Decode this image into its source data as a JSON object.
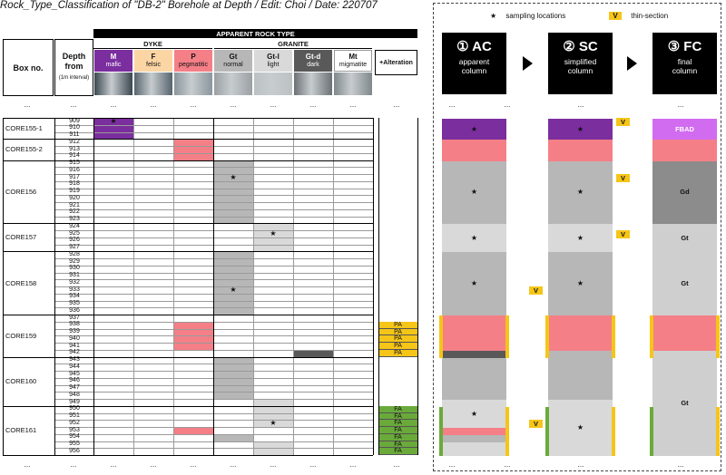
{
  "title": "Rock_Type_Classification of \"DB-2\" Borehole at Depth / Edit: Choi / Date: 220707",
  "header": {
    "box_no": "Box no.",
    "depth_from": "Depth from",
    "depth_interval": "(1m interval)",
    "apparent_rock_type": "APPARENT ROCK TYPE",
    "dyke": "DYKE",
    "granite": "GRANITE",
    "alteration": "+Alteration",
    "rock_types": [
      {
        "code": "M",
        "desc": "mafic",
        "color": "#7b2e9e",
        "text_color": "#ffffff",
        "photo": "#3a4650"
      },
      {
        "code": "F",
        "desc": "felsic",
        "color": "#fcd5a4",
        "text_color": "#111111",
        "photo": "#56646c"
      },
      {
        "code": "P",
        "desc": "pegmatitic",
        "color": "#f57f87",
        "text_color": "#111111",
        "photo": "#8a969c"
      },
      {
        "code": "Gt",
        "desc": "normal",
        "color": "#b7b7b7",
        "text_color": "#111111",
        "photo": "#9aa0a4"
      },
      {
        "code": "Gt-l",
        "desc": "light",
        "color": "#d9d9d9",
        "text_color": "#111111",
        "photo": "#bcc1c3"
      },
      {
        "code": "Gt-d",
        "desc": "dark",
        "color": "#595959",
        "text_color": "#ffffff",
        "photo": "#6b7176"
      },
      {
        "code": "Mt",
        "desc": "migmatite",
        "color": "#ffffff",
        "text_color": "#111111",
        "photo": "#80888c"
      }
    ]
  },
  "ellipsis": "...",
  "boxes": [
    {
      "name": "CORE155-1",
      "start": 909,
      "end": 911
    },
    {
      "name": "CORE155-2",
      "start": 912,
      "end": 914
    },
    {
      "name": "CORE156",
      "start": 915,
      "end": 923
    },
    {
      "name": "CORE157",
      "start": 924,
      "end": 927
    },
    {
      "name": "CORE158",
      "start": 928,
      "end": 936
    },
    {
      "name": "CORE159",
      "start": 937,
      "end": 942
    },
    {
      "name": "CORE160",
      "start": 943,
      "end": 949
    },
    {
      "name": "CORE161",
      "start": 950,
      "end": 956
    }
  ],
  "depths": [
    909,
    910,
    911,
    912,
    913,
    914,
    915,
    916,
    917,
    918,
    919,
    920,
    921,
    922,
    923,
    924,
    925,
    926,
    927,
    928,
    929,
    930,
    931,
    932,
    933,
    934,
    935,
    936,
    937,
    938,
    939,
    940,
    941,
    942,
    943,
    944,
    945,
    946,
    947,
    948,
    949,
    950,
    951,
    952,
    953,
    954,
    955,
    956
  ],
  "rock_intervals": [
    {
      "col": 0,
      "from": 909,
      "to": 911
    },
    {
      "col": 2,
      "from": 912,
      "to": 914
    },
    {
      "col": 3,
      "from": 915,
      "to": 923
    },
    {
      "col": 4,
      "from": 924,
      "to": 927
    },
    {
      "col": 3,
      "from": 928,
      "to": 936
    },
    {
      "col": 2,
      "from": 938,
      "to": 941
    },
    {
      "col": 5,
      "from": 942,
      "to": 942
    },
    {
      "col": 3,
      "from": 943,
      "to": 948
    },
    {
      "col": 4,
      "from": 949,
      "to": 952
    },
    {
      "col": 2,
      "from": 953,
      "to": 953
    },
    {
      "col": 3,
      "from": 954,
      "to": 954
    },
    {
      "col": 4,
      "from": 955,
      "to": 956
    }
  ],
  "stars": [
    {
      "col": 0,
      "depth": 909
    },
    {
      "col": 3,
      "depth": 917
    },
    {
      "col": 4,
      "depth": 925
    },
    {
      "col": 3,
      "depth": 933
    },
    {
      "col": 4,
      "depth": 952
    }
  ],
  "alteration": [
    {
      "from": 938,
      "to": 942,
      "label": "PA",
      "color": "#f5c518"
    },
    {
      "from": 950,
      "to": 956,
      "label": "FA",
      "color": "#6aaa3a"
    }
  ],
  "legend": {
    "star_symbol": "★",
    "sampling": "sampling locations",
    "v_symbol": "V",
    "thin_section": "thin-section"
  },
  "columns": [
    {
      "num": "① AC",
      "line1": "apparent",
      "line2": "column"
    },
    {
      "num": "② SC",
      "line1": "simplified",
      "line2": "column"
    },
    {
      "num": "③ FC",
      "line1": "final",
      "line2": "column"
    }
  ],
  "ac_segments": [
    {
      "from": 909,
      "to": 911,
      "color": "#7b2e9e",
      "star": true
    },
    {
      "from": 912,
      "to": 914,
      "color": "#f57f87"
    },
    {
      "from": 915,
      "to": 923,
      "color": "#b7b7b7",
      "star": true
    },
    {
      "from": 924,
      "to": 927,
      "color": "#d9d9d9",
      "star": true
    },
    {
      "from": 928,
      "to": 936,
      "color": "#b7b7b7",
      "star": true
    },
    {
      "from": 937,
      "to": 941,
      "color": "#f57f87"
    },
    {
      "from": 942,
      "to": 942,
      "color": "#595959"
    },
    {
      "from": 943,
      "to": 948,
      "color": "#b7b7b7"
    },
    {
      "from": 949,
      "to": 952,
      "color": "#d9d9d9",
      "star": true
    },
    {
      "from": 953,
      "to": 953,
      "color": "#f57f87"
    },
    {
      "from": 954,
      "to": 954,
      "color": "#b7b7b7"
    },
    {
      "from": 955,
      "to": 956,
      "color": "#d9d9d9"
    }
  ],
  "sc_segments": [
    {
      "from": 909,
      "to": 911,
      "color": "#7b2e9e",
      "star": true
    },
    {
      "from": 912,
      "to": 914,
      "color": "#f57f87"
    },
    {
      "from": 915,
      "to": 923,
      "color": "#b7b7b7",
      "star": true
    },
    {
      "from": 924,
      "to": 927,
      "color": "#d9d9d9",
      "star": true
    },
    {
      "from": 928,
      "to": 936,
      "color": "#b7b7b7",
      "star": true
    },
    {
      "from": 937,
      "to": 941,
      "color": "#f57f87"
    },
    {
      "from": 942,
      "to": 948,
      "color": "#b7b7b7"
    },
    {
      "from": 949,
      "to": 956,
      "color": "#d9d9d9",
      "star": true
    }
  ],
  "fc_segments": [
    {
      "from": 909,
      "to": 911,
      "color": "#d16cf0",
      "label": "FBAD",
      "text_color": "#ffffff"
    },
    {
      "from": 912,
      "to": 914,
      "color": "#f57f87",
      "label": ""
    },
    {
      "from": 915,
      "to": 923,
      "color": "#8c8c8c",
      "label": "Gd",
      "text_color": "#111111"
    },
    {
      "from": 924,
      "to": 927,
      "color": "#cfcfcf",
      "label": "Gt",
      "text_color": "#111111"
    },
    {
      "from": 928,
      "to": 936,
      "color": "#cfcfcf",
      "label": "Gt",
      "text_color": "#111111"
    },
    {
      "from": 937,
      "to": 941,
      "color": "#f57f87",
      "label": ""
    },
    {
      "from": 942,
      "to": 956,
      "color": "#cfcfcf",
      "label": "Gt",
      "text_color": "#111111"
    }
  ],
  "v_badges": [
    {
      "col": "ac",
      "depth": 933
    },
    {
      "col": "ac",
      "depth": 952
    },
    {
      "col": "sc",
      "depth": 909
    },
    {
      "col": "sc",
      "depth": 917
    },
    {
      "col": "sc",
      "depth": 925
    }
  ]
}
